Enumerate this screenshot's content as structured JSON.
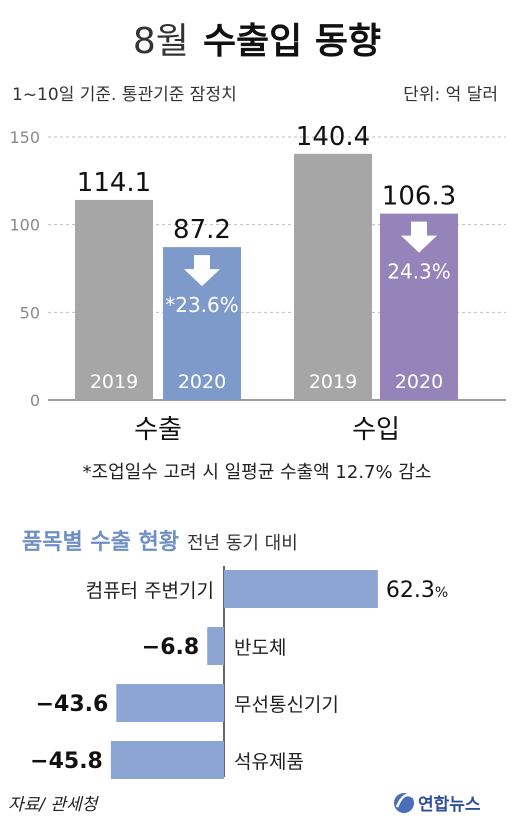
{
  "header": {
    "title_prefix": "8월",
    "title_main": "수출입 동향",
    "subtitle": "1~10일 기준. 통관기준 잠정치",
    "unit": "단위: 억 달러"
  },
  "footnote": "*조업일수 고려 시 일평균 수출액 12.7% 감소",
  "source": "자료/ 관세청",
  "logo_text": "연합뉴스",
  "colors": {
    "gray_bar": "#a6a6a6",
    "export_2020": "#7e9acb",
    "import_2020": "#9683ba",
    "export_heading": "#6f8fc5",
    "item_bar": "#8da5d2",
    "grid": "#bfbfbf",
    "text": "#222222",
    "axis_text": "#8a8a8a"
  },
  "chart_data": [
    {
      "type": "bar",
      "title": "",
      "categories": [
        "수출",
        "수입"
      ],
      "series": [
        {
          "name": "2019",
          "values": [
            114.1,
            140.4
          ]
        },
        {
          "name": "2020",
          "values": [
            87.2,
            106.3
          ]
        }
      ],
      "bar_labels": [
        "2019",
        "2020",
        "2019",
        "2020"
      ],
      "value_labels": [
        "114.1",
        "87.2",
        "140.4",
        "106.3"
      ],
      "change_labels": [
        "*23.6%",
        "24.3%"
      ],
      "change_direction": "down",
      "yticks": [
        0,
        50,
        100,
        150
      ],
      "ylim": [
        0,
        150
      ],
      "xlabel": "",
      "ylabel": "",
      "grid": true
    },
    {
      "type": "bar",
      "orientation": "horizontal",
      "title": "품목별 수출 현황",
      "subtitle": "전년 동기 대비",
      "categories": [
        "컴퓨터 주변기기",
        "반도체",
        "무선통신기기",
        "석유제품"
      ],
      "values": [
        62.3,
        -6.8,
        -43.6,
        -45.8
      ],
      "value_labels": [
        "62.3",
        "−6.8",
        "−43.6",
        "−45.8"
      ],
      "percent_sign": "%",
      "unit": "%"
    }
  ]
}
